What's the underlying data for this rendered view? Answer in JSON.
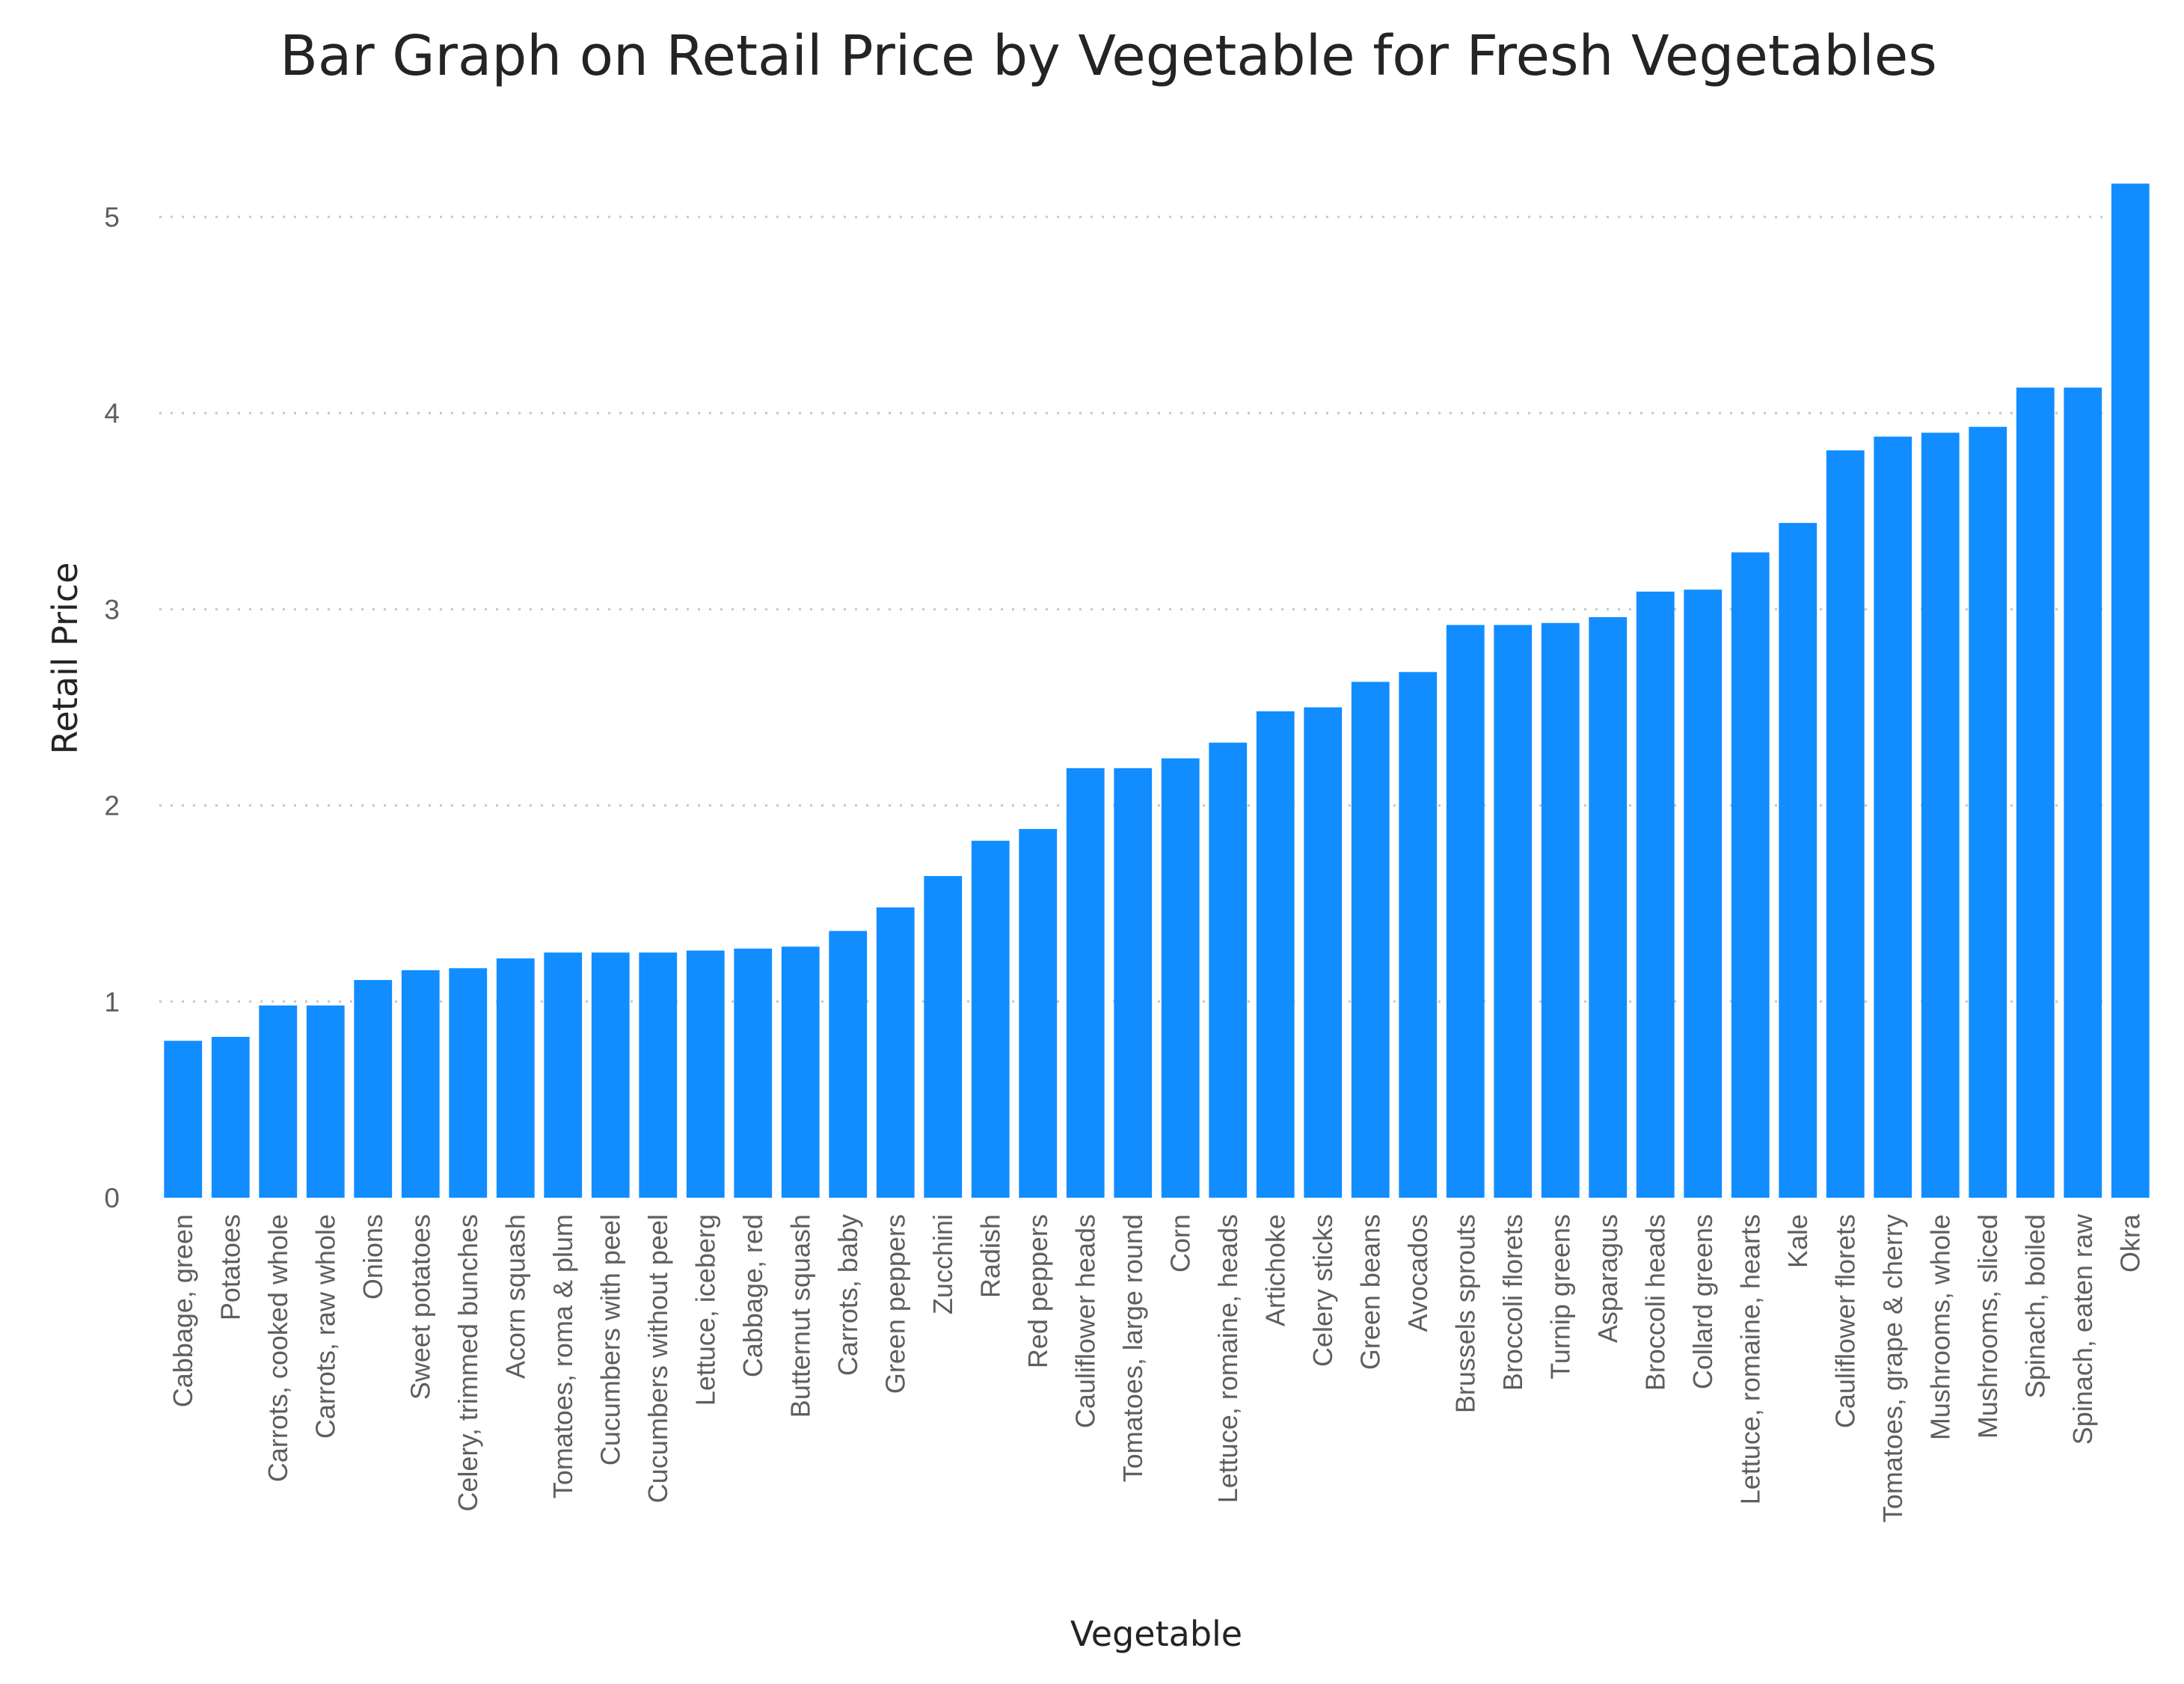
{
  "chart_data": {
    "type": "bar",
    "title": "Bar Graph on Retail Price by Vegetable for Fresh Vegetables",
    "xlabel": "Vegetable",
    "ylabel": "Retail Price",
    "ylim": [
      0,
      5.3
    ],
    "yticks": [
      "0",
      "1",
      "2",
      "3",
      "4",
      "5"
    ],
    "grid": true,
    "bar_color": "#118dff",
    "categories": [
      "Cabbage, green",
      "Potatoes",
      "Carrots, cooked whole",
      "Carrots, raw whole",
      "Onions",
      "Sweet potatoes",
      "Celery, trimmed bunches",
      "Acorn squash",
      "Tomatoes, roma & plum",
      "Cucumbers with peel",
      "Cucumbers without peel",
      "Lettuce, iceberg",
      "Cabbage, red",
      "Butternut squash",
      "Carrots, baby",
      "Green peppers",
      "Zucchini",
      "Radish",
      "Red peppers",
      "Cauliflower heads",
      "Tomatoes, large round",
      "Corn",
      "Lettuce, romaine, heads",
      "Artichoke",
      "Celery sticks",
      "Green beans",
      "Avocados",
      "Brussels sprouts",
      "Broccoli florets",
      "Turnip greens",
      "Asparagus",
      "Broccoli heads",
      "Collard greens",
      "Lettuce, romaine, hearts",
      "Kale",
      "Cauliflower florets",
      "Tomatoes, grape & cherry",
      "Mushrooms, whole",
      "Mushrooms, sliced",
      "Spinach, boiled",
      "Spinach, eaten raw",
      "Okra"
    ],
    "values": [
      0.8,
      0.82,
      0.98,
      0.98,
      1.11,
      1.16,
      1.17,
      1.22,
      1.25,
      1.25,
      1.25,
      1.26,
      1.27,
      1.28,
      1.36,
      1.48,
      1.64,
      1.82,
      1.88,
      2.19,
      2.19,
      2.24,
      2.32,
      2.48,
      2.5,
      2.63,
      2.68,
      2.92,
      2.92,
      2.93,
      2.96,
      3.09,
      3.1,
      3.29,
      3.44,
      3.81,
      3.88,
      3.9,
      3.93,
      4.13,
      4.13,
      5.17
    ]
  }
}
